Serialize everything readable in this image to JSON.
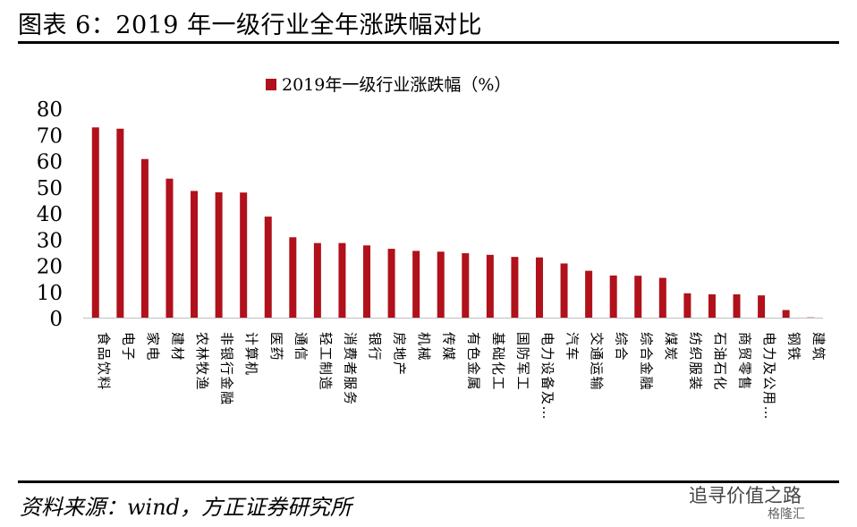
{
  "figure": {
    "title": "图表 6：2019 年一级行业全年涨跌幅对比",
    "source": "资料来源：wind，方正证券研究所",
    "watermark": "追寻价值之路",
    "watermark_sub": "格隆汇"
  },
  "chart_data": {
    "type": "bar",
    "legend": [
      "2019年一级行业涨跌幅（%）"
    ],
    "legend_position": "top",
    "bar_color": "#B0111B",
    "ylim": [
      0,
      80
    ],
    "yticks": [
      0,
      10,
      20,
      30,
      40,
      50,
      60,
      70,
      80
    ],
    "grid": false,
    "categories": [
      {
        "full": "食品饮料",
        "shown": "食品饮料"
      },
      {
        "full": "电子",
        "shown": "电子"
      },
      {
        "full": "家电",
        "shown": "家电"
      },
      {
        "full": "建材",
        "shown": "建材"
      },
      {
        "full": "农林牧渔",
        "shown": "农林牧渔"
      },
      {
        "full": "非银行金融",
        "shown": "非银行金融"
      },
      {
        "full": "计算机",
        "shown": "计算机"
      },
      {
        "full": "医药",
        "shown": "医药"
      },
      {
        "full": "通信",
        "shown": "通信"
      },
      {
        "full": "轻工制造",
        "shown": "轻工制造"
      },
      {
        "full": "消费者服务",
        "shown": "消费者服务"
      },
      {
        "full": "银行",
        "shown": "银行"
      },
      {
        "full": "房地产",
        "shown": "房地产"
      },
      {
        "full": "机械",
        "shown": "机械"
      },
      {
        "full": "传媒",
        "shown": "传媒"
      },
      {
        "full": "有色金属",
        "shown": "有色金属"
      },
      {
        "full": "基础化工",
        "shown": "基础化工"
      },
      {
        "full": "国防军工",
        "shown": "国防军工"
      },
      {
        "full": "电力设备及新能源",
        "shown": "电力设备及…"
      },
      {
        "full": "汽车",
        "shown": "汽车"
      },
      {
        "full": "交通运输",
        "shown": "交通运输"
      },
      {
        "full": "综合",
        "shown": "综合"
      },
      {
        "full": "综合金融",
        "shown": "综合金融"
      },
      {
        "full": "煤炭",
        "shown": "煤炭"
      },
      {
        "full": "纺织服装",
        "shown": "纺织服装"
      },
      {
        "full": "石油石化",
        "shown": "石油石化"
      },
      {
        "full": "商贸零售",
        "shown": "商贸零售"
      },
      {
        "full": "电力及公用事业",
        "shown": "电力及公用…"
      },
      {
        "full": "钢铁",
        "shown": "钢铁"
      },
      {
        "full": "建筑",
        "shown": "建筑"
      }
    ],
    "values": [
      72.7,
      72.2,
      60.6,
      53.1,
      48.4,
      47.9,
      47.8,
      38.6,
      30.7,
      28.5,
      28.5,
      27.6,
      26.3,
      25.5,
      25.2,
      24.6,
      24.0,
      23.2,
      23.0,
      20.7,
      17.9,
      16.1,
      16.0,
      15.2,
      9.3,
      8.9,
      8.9,
      8.5,
      2.9,
      0.1
    ]
  }
}
